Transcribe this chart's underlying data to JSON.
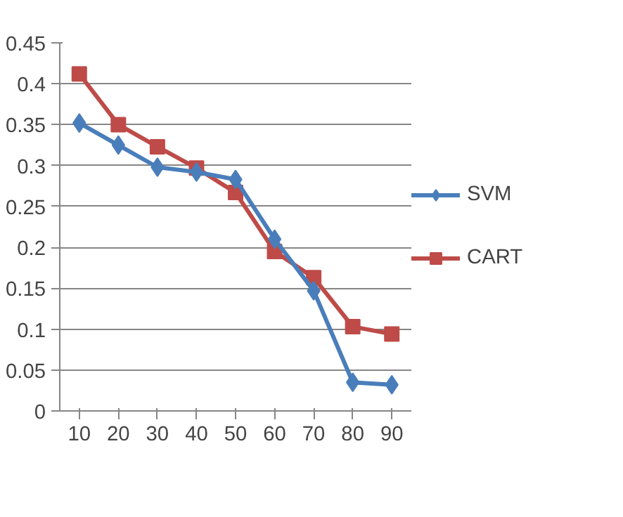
{
  "chart_data": {
    "type": "line",
    "categories": [
      "10",
      "20",
      "30",
      "40",
      "50",
      "60",
      "70",
      "80",
      "90"
    ],
    "series": [
      {
        "name": "SVM",
        "color": "#4a7ebb",
        "marker": "diamond",
        "values": [
          0.352,
          0.325,
          0.298,
          0.292,
          0.283,
          0.21,
          0.147,
          0.035,
          0.032
        ]
      },
      {
        "name": "CART",
        "color": "#be4b48",
        "marker": "square",
        "values": [
          0.412,
          0.35,
          0.323,
          0.297,
          0.267,
          0.195,
          0.163,
          0.103,
          0.094
        ]
      }
    ],
    "ylim": [
      0,
      0.45
    ],
    "yticks": [
      0,
      0.05,
      0.1,
      0.15,
      0.2,
      0.25,
      0.3,
      0.35,
      0.4,
      0.45
    ],
    "grid": "y",
    "legend": "right",
    "line_style": "solid"
  }
}
